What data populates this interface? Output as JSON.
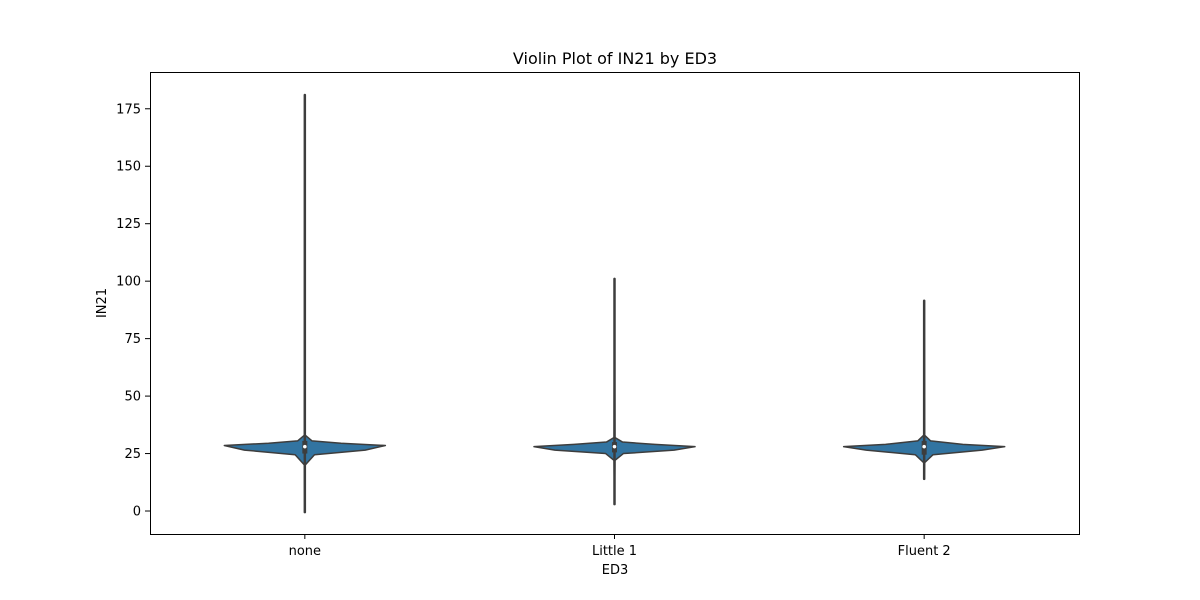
{
  "chart_data": {
    "type": "violin",
    "title": "Violin Plot of IN21 by ED3",
    "xlabel": "ED3",
    "ylabel": "IN21",
    "categories": [
      "none",
      "Little 1",
      "Fluent 2"
    ],
    "ylim": [
      -10,
      191
    ],
    "yticks": [
      0,
      25,
      50,
      75,
      100,
      125,
      150,
      175
    ],
    "grid": false,
    "colors": {
      "fill": "#3274a1",
      "edge": "#3d3d3d",
      "inner": "#3d3d3d"
    },
    "violins": [
      {
        "category": "none",
        "min": -0.5,
        "max": 181,
        "q1": 25,
        "median": 28,
        "q3": 30.5,
        "profile": [
          [
            -0.5,
            0
          ],
          [
            20,
            0.005
          ],
          [
            24.5,
            0.12
          ],
          [
            26.5,
            0.75
          ],
          [
            28.5,
            1.0
          ],
          [
            29.5,
            0.45
          ],
          [
            30.5,
            0.09
          ],
          [
            33,
            0.005
          ],
          [
            181,
            0
          ]
        ]
      },
      {
        "category": "Little 1",
        "min": 3,
        "max": 101,
        "q1": 25.5,
        "median": 28,
        "q3": 30,
        "profile": [
          [
            3,
            0
          ],
          [
            22,
            0.005
          ],
          [
            25,
            0.11
          ],
          [
            26.5,
            0.74
          ],
          [
            28,
            1.0
          ],
          [
            29,
            0.5
          ],
          [
            30,
            0.1
          ],
          [
            32,
            0.005
          ],
          [
            101,
            0
          ]
        ]
      },
      {
        "category": "Fluent 2",
        "min": 14,
        "max": 91.5,
        "q1": 24.5,
        "median": 28,
        "q3": 30.5,
        "profile": [
          [
            14,
            0
          ],
          [
            21,
            0.005
          ],
          [
            24.5,
            0.11
          ],
          [
            26.5,
            0.72
          ],
          [
            28,
            1.0
          ],
          [
            29,
            0.48
          ],
          [
            30.5,
            0.08
          ],
          [
            33,
            0.005
          ],
          [
            91.5,
            0
          ]
        ]
      }
    ]
  }
}
